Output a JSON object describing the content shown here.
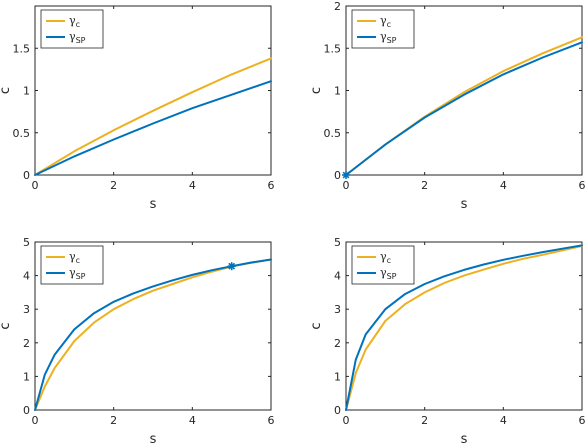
{
  "colors": {
    "gamma_c": "#EDB120",
    "gamma_sp": "#0072BD",
    "axis": "#262626"
  },
  "legend": {
    "entries": [
      {
        "symbol": "γ",
        "sub": "c"
      },
      {
        "symbol": "γ",
        "sub": "SP"
      }
    ],
    "placement": "top-left"
  },
  "chart_data": [
    {
      "type": "line",
      "xlabel": "s",
      "ylabel": "c",
      "xlim": [
        0,
        6
      ],
      "ylim": [
        0,
        2
      ],
      "xticks": [
        "0",
        "2",
        "4",
        "6"
      ],
      "yticks": [
        "0",
        "0.5",
        "1",
        "1.5"
      ],
      "grid": false,
      "x": [
        0,
        1,
        2,
        3,
        4,
        5,
        6
      ],
      "series": [
        {
          "name": "γc",
          "color": "gamma_c",
          "values": [
            0,
            0.28,
            0.53,
            0.76,
            0.98,
            1.19,
            1.38
          ]
        },
        {
          "name": "γSP",
          "color": "gamma_sp",
          "values": [
            0,
            0.22,
            0.42,
            0.61,
            0.79,
            0.95,
            1.11
          ]
        }
      ],
      "markers": []
    },
    {
      "type": "line",
      "xlabel": "s",
      "ylabel": "c",
      "xlim": [
        0,
        6
      ],
      "ylim": [
        0,
        2
      ],
      "xticks": [
        "0",
        "2",
        "4",
        "6"
      ],
      "yticks": [
        "0",
        "0.5",
        "1",
        "1.5",
        "2"
      ],
      "grid": false,
      "x": [
        0,
        1,
        2,
        3,
        4,
        5,
        6
      ],
      "series": [
        {
          "name": "γc",
          "color": "gamma_c",
          "values": [
            0,
            0.36,
            0.69,
            0.98,
            1.23,
            1.44,
            1.63
          ]
        },
        {
          "name": "γSP",
          "color": "gamma_sp",
          "values": [
            0,
            0.36,
            0.68,
            0.95,
            1.19,
            1.39,
            1.57
          ]
        }
      ],
      "markers": [
        {
          "x": 0,
          "y": 0,
          "color": "gamma_sp"
        }
      ]
    },
    {
      "type": "line",
      "xlabel": "s",
      "ylabel": "c",
      "xlim": [
        0,
        6
      ],
      "ylim": [
        0,
        5
      ],
      "xticks": [
        "0",
        "2",
        "4",
        "6"
      ],
      "yticks": [
        "0",
        "1",
        "2",
        "3",
        "4",
        "5"
      ],
      "grid": false,
      "x": [
        0,
        0.25,
        0.5,
        1,
        1.5,
        2,
        2.5,
        3,
        3.5,
        4,
        4.5,
        5,
        5.5,
        6
      ],
      "series": [
        {
          "name": "γc",
          "color": "gamma_c",
          "values": [
            0,
            0.7,
            1.25,
            2.05,
            2.6,
            3.0,
            3.3,
            3.55,
            3.75,
            3.95,
            4.12,
            4.27,
            4.38,
            4.48
          ]
        },
        {
          "name": "γSP",
          "color": "gamma_sp",
          "values": [
            0,
            1.05,
            1.65,
            2.4,
            2.88,
            3.22,
            3.47,
            3.68,
            3.86,
            4.02,
            4.16,
            4.28,
            4.39,
            4.48
          ]
        }
      ],
      "markers": [
        {
          "x": 5,
          "y": 4.28,
          "color": "gamma_sp"
        }
      ]
    },
    {
      "type": "line",
      "xlabel": "s",
      "ylabel": "c",
      "xlim": [
        0,
        6
      ],
      "ylim": [
        0,
        5
      ],
      "xticks": [
        "0",
        "2",
        "4",
        "6"
      ],
      "yticks": [
        "0",
        "1",
        "2",
        "3",
        "4",
        "5"
      ],
      "grid": false,
      "x": [
        0,
        0.25,
        0.5,
        1,
        1.5,
        2,
        2.5,
        3,
        3.5,
        4,
        4.5,
        5,
        5.5,
        6
      ],
      "series": [
        {
          "name": "γc",
          "color": "gamma_c",
          "values": [
            0,
            1.1,
            1.8,
            2.65,
            3.15,
            3.5,
            3.78,
            4.0,
            4.18,
            4.35,
            4.5,
            4.62,
            4.75,
            4.88
          ]
        },
        {
          "name": "γSP",
          "color": "gamma_sp",
          "values": [
            0,
            1.5,
            2.25,
            3.0,
            3.45,
            3.75,
            3.98,
            4.17,
            4.33,
            4.47,
            4.59,
            4.7,
            4.8,
            4.9
          ]
        }
      ],
      "markers": []
    }
  ]
}
